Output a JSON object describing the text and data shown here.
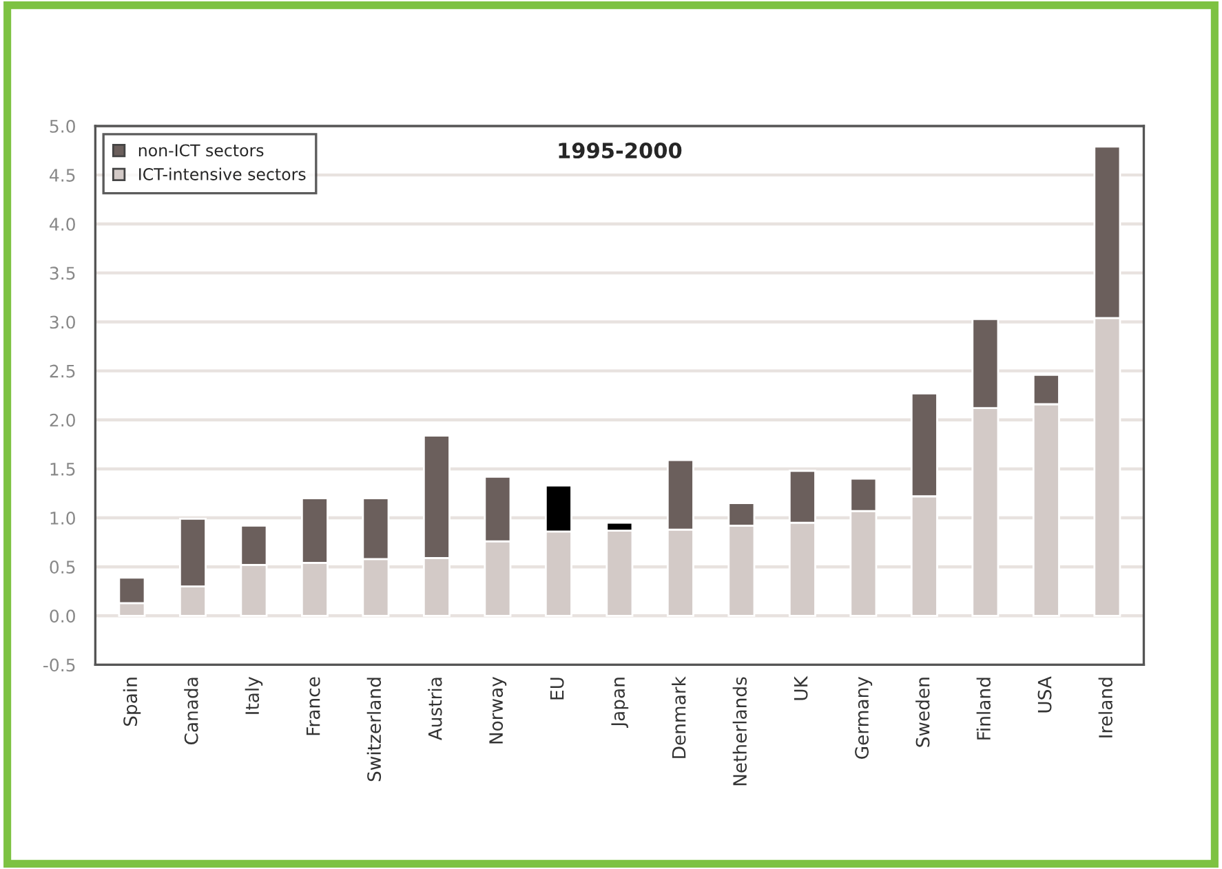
{
  "chart_data": {
    "type": "bar",
    "title": "1995-2000",
    "stacked": true,
    "categories": [
      "Spain",
      "Canada",
      "Italy",
      "France",
      "Switzerland",
      "Austria",
      "Norway",
      "EU",
      "Japan",
      "Denmark",
      "Netherlands",
      "UK",
      "Germany",
      "Sweden",
      "Finland",
      "USA",
      "Ireland"
    ],
    "series": [
      {
        "name": "ICT-intensive sectors",
        "color": "#d3cac7",
        "values": [
          0.13,
          0.3,
          0.52,
          0.54,
          0.58,
          0.59,
          0.76,
          0.86,
          0.87,
          0.88,
          0.92,
          0.95,
          1.07,
          1.22,
          2.12,
          2.16,
          3.04
        ]
      },
      {
        "name": "non-ICT sectors",
        "color": "#6b5f5c",
        "colors": [
          "#6b5f5c",
          "#6b5f5c",
          "#6b5f5c",
          "#6b5f5c",
          "#6b5f5c",
          "#6b5f5c",
          "#6b5f5c",
          "#000000",
          "#000000",
          "#6b5f5c",
          "#6b5f5c",
          "#6b5f5c",
          "#6b5f5c",
          "#6b5f5c",
          "#6b5f5c",
          "#6b5f5c",
          "#6b5f5c"
        ],
        "values": [
          0.26,
          0.69,
          0.4,
          0.66,
          0.62,
          1.25,
          0.66,
          0.47,
          0.08,
          0.71,
          0.23,
          0.53,
          0.33,
          1.05,
          0.91,
          0.3,
          1.75
        ]
      }
    ],
    "ylim": [
      -0.5,
      5.0
    ],
    "yticks": [
      {
        "value": -0.5,
        "label": "-0.5"
      },
      {
        "value": 0,
        "label": "0.0"
      },
      {
        "value": 0.5,
        "label": "0.5"
      },
      {
        "value": 1,
        "label": "1.0"
      },
      {
        "value": 1.5,
        "label": "1.5"
      },
      {
        "value": 2,
        "label": "2.0"
      },
      {
        "value": 2.5,
        "label": "2.5"
      },
      {
        "value": 3,
        "label": "3.0"
      },
      {
        "value": 3.5,
        "label": "3.5"
      },
      {
        "value": 4,
        "label": "4.0"
      },
      {
        "value": 4.5,
        "label": "4.5"
      },
      {
        "value": 5,
        "label": "5.0"
      }
    ],
    "grid": "y",
    "legend": "top left"
  }
}
